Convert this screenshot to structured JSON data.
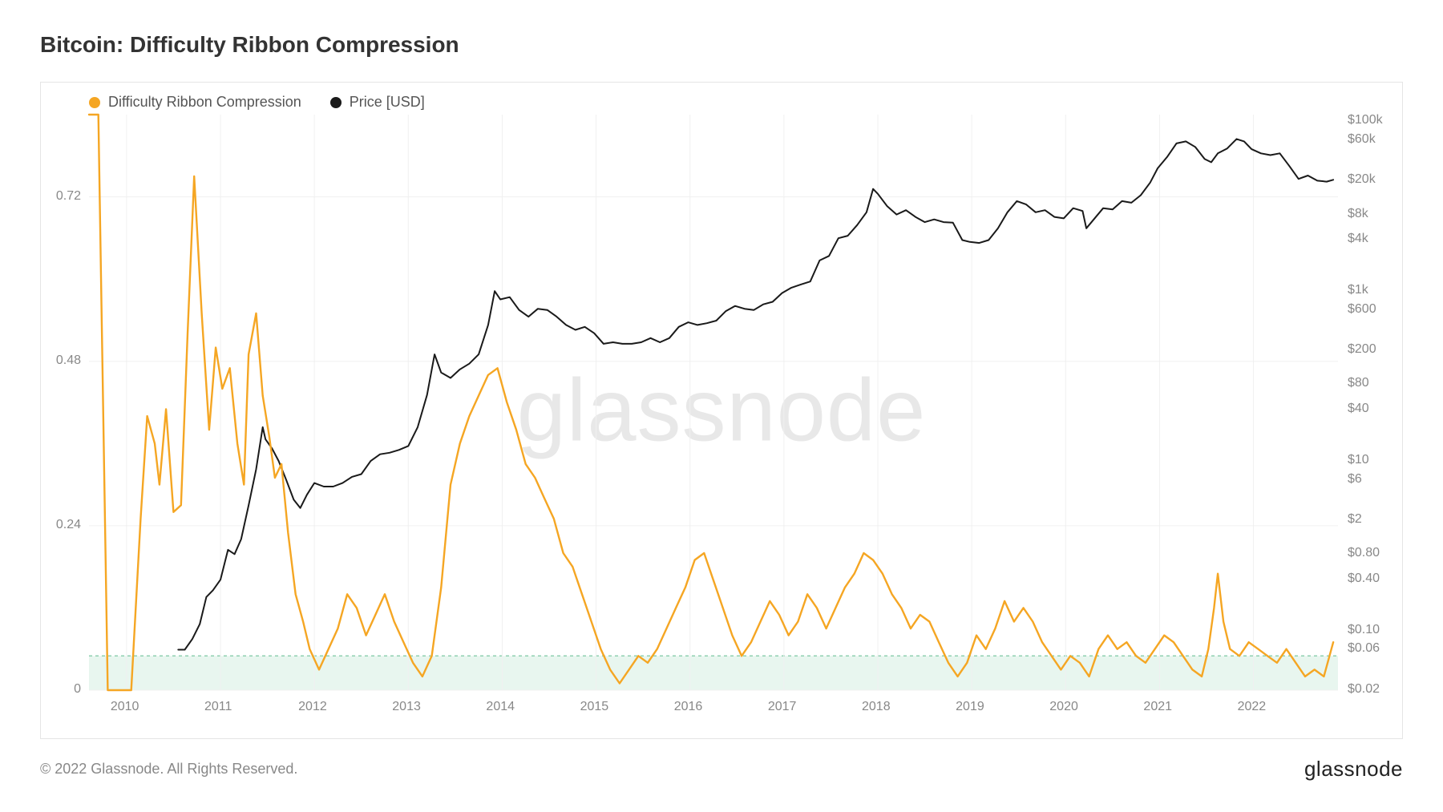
{
  "title": "Bitcoin: Difficulty Ribbon Compression",
  "copyright": "© 2022 Glassnode. All Rights Reserved.",
  "brand": "glassnode",
  "watermark": "glassnode",
  "legend": {
    "series1": {
      "label": "Difficulty Ribbon Compression",
      "color": "#f5a623"
    },
    "series2": {
      "label": "Price [USD]",
      "color": "#1a1a1a"
    }
  },
  "chart": {
    "type": "line-dual-axis",
    "background_color": "#ffffff",
    "border_color": "#e5e5e5",
    "grid_color": "#f0f0f0",
    "shade_band": {
      "y_min": 0,
      "y_max": 0.05,
      "fill": "#d9f0e4",
      "opacity": 0.6,
      "border_color": "#8fd0b0"
    },
    "x_axis": {
      "min_year": 2009.6,
      "max_year": 2022.9,
      "ticks": [
        2010,
        2011,
        2012,
        2013,
        2014,
        2015,
        2016,
        2017,
        2018,
        2019,
        2020,
        2021,
        2022
      ],
      "tick_labels": [
        "2010",
        "2011",
        "2012",
        "2013",
        "2014",
        "2015",
        "2016",
        "2017",
        "2018",
        "2019",
        "2020",
        "2021",
        "2022"
      ],
      "label_color": "#888888",
      "label_fontsize": 16
    },
    "y_left": {
      "scale": "linear",
      "min": 0,
      "max": 0.84,
      "ticks": [
        0,
        0.24,
        0.48,
        0.72
      ],
      "tick_labels": [
        "0",
        "0.24",
        "0.48",
        "0.72"
      ],
      "label_color": "#888888",
      "label_fontsize": 16
    },
    "y_right": {
      "scale": "log",
      "min": 0.02,
      "max": 120000,
      "ticks": [
        0.02,
        0.06,
        0.1,
        0.4,
        0.8,
        2,
        6,
        10,
        40,
        80,
        200,
        600,
        1000,
        4000,
        8000,
        20000,
        60000,
        100000
      ],
      "tick_labels": [
        "$0.02",
        "$0.06",
        "$0.10",
        "$0.40",
        "$0.80",
        "$2",
        "$6",
        "$10",
        "$40",
        "$80",
        "$200",
        "$600",
        "$1k",
        "$4k",
        "$8k",
        "$20k",
        "$60k",
        "$100k"
      ],
      "label_color": "#888888",
      "label_fontsize": 16
    },
    "series_drc": {
      "name": "Difficulty Ribbon Compression",
      "color": "#f5a623",
      "line_width": 2.4,
      "axis": "left",
      "points": [
        [
          2009.6,
          0.84
        ],
        [
          2009.7,
          0.84
        ],
        [
          2009.8,
          0.0
        ],
        [
          2010.0,
          0.0
        ],
        [
          2010.05,
          0.0
        ],
        [
          2010.15,
          0.25
        ],
        [
          2010.22,
          0.4
        ],
        [
          2010.3,
          0.36
        ],
        [
          2010.35,
          0.3
        ],
        [
          2010.42,
          0.41
        ],
        [
          2010.5,
          0.26
        ],
        [
          2010.58,
          0.27
        ],
        [
          2010.65,
          0.52
        ],
        [
          2010.72,
          0.75
        ],
        [
          2010.8,
          0.55
        ],
        [
          2010.88,
          0.38
        ],
        [
          2010.95,
          0.5
        ],
        [
          2011.02,
          0.44
        ],
        [
          2011.1,
          0.47
        ],
        [
          2011.18,
          0.36
        ],
        [
          2011.25,
          0.3
        ],
        [
          2011.3,
          0.49
        ],
        [
          2011.38,
          0.55
        ],
        [
          2011.45,
          0.43
        ],
        [
          2011.52,
          0.37
        ],
        [
          2011.58,
          0.31
        ],
        [
          2011.65,
          0.33
        ],
        [
          2011.72,
          0.23
        ],
        [
          2011.8,
          0.14
        ],
        [
          2011.88,
          0.1
        ],
        [
          2011.95,
          0.06
        ],
        [
          2012.05,
          0.03
        ],
        [
          2012.15,
          0.06
        ],
        [
          2012.25,
          0.09
        ],
        [
          2012.35,
          0.14
        ],
        [
          2012.45,
          0.12
        ],
        [
          2012.55,
          0.08
        ],
        [
          2012.65,
          0.11
        ],
        [
          2012.75,
          0.14
        ],
        [
          2012.85,
          0.1
        ],
        [
          2012.95,
          0.07
        ],
        [
          2013.05,
          0.04
        ],
        [
          2013.15,
          0.02
        ],
        [
          2013.25,
          0.05
        ],
        [
          2013.35,
          0.15
        ],
        [
          2013.45,
          0.3
        ],
        [
          2013.55,
          0.36
        ],
        [
          2013.65,
          0.4
        ],
        [
          2013.75,
          0.43
        ],
        [
          2013.85,
          0.46
        ],
        [
          2013.95,
          0.47
        ],
        [
          2014.05,
          0.42
        ],
        [
          2014.15,
          0.38
        ],
        [
          2014.25,
          0.33
        ],
        [
          2014.35,
          0.31
        ],
        [
          2014.45,
          0.28
        ],
        [
          2014.55,
          0.25
        ],
        [
          2014.65,
          0.2
        ],
        [
          2014.75,
          0.18
        ],
        [
          2014.85,
          0.14
        ],
        [
          2014.95,
          0.1
        ],
        [
          2015.05,
          0.06
        ],
        [
          2015.15,
          0.03
        ],
        [
          2015.25,
          0.01
        ],
        [
          2015.35,
          0.03
        ],
        [
          2015.45,
          0.05
        ],
        [
          2015.55,
          0.04
        ],
        [
          2015.65,
          0.06
        ],
        [
          2015.75,
          0.09
        ],
        [
          2015.85,
          0.12
        ],
        [
          2015.95,
          0.15
        ],
        [
          2016.05,
          0.19
        ],
        [
          2016.15,
          0.2
        ],
        [
          2016.25,
          0.16
        ],
        [
          2016.35,
          0.12
        ],
        [
          2016.45,
          0.08
        ],
        [
          2016.55,
          0.05
        ],
        [
          2016.65,
          0.07
        ],
        [
          2016.75,
          0.1
        ],
        [
          2016.85,
          0.13
        ],
        [
          2016.95,
          0.11
        ],
        [
          2017.05,
          0.08
        ],
        [
          2017.15,
          0.1
        ],
        [
          2017.25,
          0.14
        ],
        [
          2017.35,
          0.12
        ],
        [
          2017.45,
          0.09
        ],
        [
          2017.55,
          0.12
        ],
        [
          2017.65,
          0.15
        ],
        [
          2017.75,
          0.17
        ],
        [
          2017.85,
          0.2
        ],
        [
          2017.95,
          0.19
        ],
        [
          2018.05,
          0.17
        ],
        [
          2018.15,
          0.14
        ],
        [
          2018.25,
          0.12
        ],
        [
          2018.35,
          0.09
        ],
        [
          2018.45,
          0.11
        ],
        [
          2018.55,
          0.1
        ],
        [
          2018.65,
          0.07
        ],
        [
          2018.75,
          0.04
        ],
        [
          2018.85,
          0.02
        ],
        [
          2018.95,
          0.04
        ],
        [
          2019.05,
          0.08
        ],
        [
          2019.15,
          0.06
        ],
        [
          2019.25,
          0.09
        ],
        [
          2019.35,
          0.13
        ],
        [
          2019.45,
          0.1
        ],
        [
          2019.55,
          0.12
        ],
        [
          2019.65,
          0.1
        ],
        [
          2019.75,
          0.07
        ],
        [
          2019.85,
          0.05
        ],
        [
          2019.95,
          0.03
        ],
        [
          2020.05,
          0.05
        ],
        [
          2020.15,
          0.04
        ],
        [
          2020.25,
          0.02
        ],
        [
          2020.35,
          0.06
        ],
        [
          2020.45,
          0.08
        ],
        [
          2020.55,
          0.06
        ],
        [
          2020.65,
          0.07
        ],
        [
          2020.75,
          0.05
        ],
        [
          2020.85,
          0.04
        ],
        [
          2020.95,
          0.06
        ],
        [
          2021.05,
          0.08
        ],
        [
          2021.15,
          0.07
        ],
        [
          2021.25,
          0.05
        ],
        [
          2021.35,
          0.03
        ],
        [
          2021.45,
          0.02
        ],
        [
          2021.52,
          0.06
        ],
        [
          2021.58,
          0.12
        ],
        [
          2021.62,
          0.17
        ],
        [
          2021.68,
          0.1
        ],
        [
          2021.75,
          0.06
        ],
        [
          2021.85,
          0.05
        ],
        [
          2021.95,
          0.07
        ],
        [
          2022.05,
          0.06
        ],
        [
          2022.15,
          0.05
        ],
        [
          2022.25,
          0.04
        ],
        [
          2022.35,
          0.06
        ],
        [
          2022.45,
          0.04
        ],
        [
          2022.55,
          0.02
        ],
        [
          2022.65,
          0.03
        ],
        [
          2022.75,
          0.02
        ],
        [
          2022.85,
          0.07
        ]
      ]
    },
    "series_price": {
      "name": "Price [USD]",
      "color": "#1a1a1a",
      "line_width": 2.0,
      "axis": "right",
      "points": [
        [
          2010.55,
          0.06
        ],
        [
          2010.62,
          0.06
        ],
        [
          2010.7,
          0.08
        ],
        [
          2010.78,
          0.12
        ],
        [
          2010.85,
          0.25
        ],
        [
          2010.92,
          0.3
        ],
        [
          2011.0,
          0.4
        ],
        [
          2011.08,
          0.9
        ],
        [
          2011.15,
          0.8
        ],
        [
          2011.22,
          1.2
        ],
        [
          2011.3,
          3.0
        ],
        [
          2011.38,
          8.0
        ],
        [
          2011.45,
          25.0
        ],
        [
          2011.48,
          18.0
        ],
        [
          2011.55,
          14.0
        ],
        [
          2011.62,
          10.0
        ],
        [
          2011.7,
          6.0
        ],
        [
          2011.78,
          3.5
        ],
        [
          2011.85,
          2.8
        ],
        [
          2011.92,
          4.0
        ],
        [
          2012.0,
          5.5
        ],
        [
          2012.1,
          5.0
        ],
        [
          2012.2,
          5.0
        ],
        [
          2012.3,
          5.5
        ],
        [
          2012.4,
          6.5
        ],
        [
          2012.5,
          7.0
        ],
        [
          2012.6,
          10.0
        ],
        [
          2012.7,
          12.0
        ],
        [
          2012.8,
          12.5
        ],
        [
          2012.9,
          13.5
        ],
        [
          2013.0,
          15.0
        ],
        [
          2013.1,
          25.0
        ],
        [
          2013.2,
          60.0
        ],
        [
          2013.28,
          180
        ],
        [
          2013.35,
          110
        ],
        [
          2013.45,
          95.0
        ],
        [
          2013.55,
          120
        ],
        [
          2013.65,
          140
        ],
        [
          2013.75,
          180
        ],
        [
          2013.85,
          400
        ],
        [
          2013.92,
          1000
        ],
        [
          2013.98,
          800
        ],
        [
          2014.08,
          850
        ],
        [
          2014.18,
          600
        ],
        [
          2014.28,
          500
        ],
        [
          2014.38,
          620
        ],
        [
          2014.48,
          600
        ],
        [
          2014.58,
          500
        ],
        [
          2014.68,
          400
        ],
        [
          2014.78,
          350
        ],
        [
          2014.88,
          380
        ],
        [
          2014.98,
          320
        ],
        [
          2015.08,
          240
        ],
        [
          2015.18,
          250
        ],
        [
          2015.28,
          240
        ],
        [
          2015.38,
          240
        ],
        [
          2015.48,
          250
        ],
        [
          2015.58,
          280
        ],
        [
          2015.68,
          250
        ],
        [
          2015.78,
          280
        ],
        [
          2015.88,
          380
        ],
        [
          2015.98,
          430
        ],
        [
          2016.08,
          400
        ],
        [
          2016.18,
          420
        ],
        [
          2016.28,
          450
        ],
        [
          2016.38,
          580
        ],
        [
          2016.48,
          670
        ],
        [
          2016.58,
          620
        ],
        [
          2016.68,
          600
        ],
        [
          2016.78,
          700
        ],
        [
          2016.88,
          750
        ],
        [
          2016.98,
          950
        ],
        [
          2017.08,
          1100
        ],
        [
          2017.18,
          1200
        ],
        [
          2017.28,
          1300
        ],
        [
          2017.38,
          2300
        ],
        [
          2017.48,
          2600
        ],
        [
          2017.58,
          4200
        ],
        [
          2017.68,
          4500
        ],
        [
          2017.78,
          6000
        ],
        [
          2017.88,
          8500
        ],
        [
          2017.95,
          16000
        ],
        [
          2018.0,
          14000
        ],
        [
          2018.1,
          10000
        ],
        [
          2018.2,
          8000
        ],
        [
          2018.3,
          9000
        ],
        [
          2018.4,
          7500
        ],
        [
          2018.5,
          6500
        ],
        [
          2018.6,
          7000
        ],
        [
          2018.7,
          6500
        ],
        [
          2018.8,
          6400
        ],
        [
          2018.9,
          4000
        ],
        [
          2018.98,
          3800
        ],
        [
          2019.08,
          3700
        ],
        [
          2019.18,
          4000
        ],
        [
          2019.28,
          5500
        ],
        [
          2019.38,
          8500
        ],
        [
          2019.48,
          11500
        ],
        [
          2019.58,
          10500
        ],
        [
          2019.68,
          8500
        ],
        [
          2019.78,
          9000
        ],
        [
          2019.88,
          7500
        ],
        [
          2019.98,
          7200
        ],
        [
          2020.08,
          9500
        ],
        [
          2020.18,
          8800
        ],
        [
          2020.22,
          5500
        ],
        [
          2020.3,
          7000
        ],
        [
          2020.4,
          9500
        ],
        [
          2020.5,
          9200
        ],
        [
          2020.6,
          11500
        ],
        [
          2020.7,
          11000
        ],
        [
          2020.8,
          13500
        ],
        [
          2020.9,
          19000
        ],
        [
          2020.98,
          28000
        ],
        [
          2021.08,
          38000
        ],
        [
          2021.18,
          55000
        ],
        [
          2021.28,
          58000
        ],
        [
          2021.38,
          50000
        ],
        [
          2021.48,
          36000
        ],
        [
          2021.55,
          33000
        ],
        [
          2021.62,
          42000
        ],
        [
          2021.72,
          48000
        ],
        [
          2021.82,
          62000
        ],
        [
          2021.9,
          58000
        ],
        [
          2021.98,
          47000
        ],
        [
          2022.08,
          42000
        ],
        [
          2022.18,
          40000
        ],
        [
          2022.28,
          42000
        ],
        [
          2022.38,
          30000
        ],
        [
          2022.48,
          21000
        ],
        [
          2022.58,
          23000
        ],
        [
          2022.68,
          20000
        ],
        [
          2022.78,
          19500
        ],
        [
          2022.85,
          20500
        ]
      ]
    }
  }
}
